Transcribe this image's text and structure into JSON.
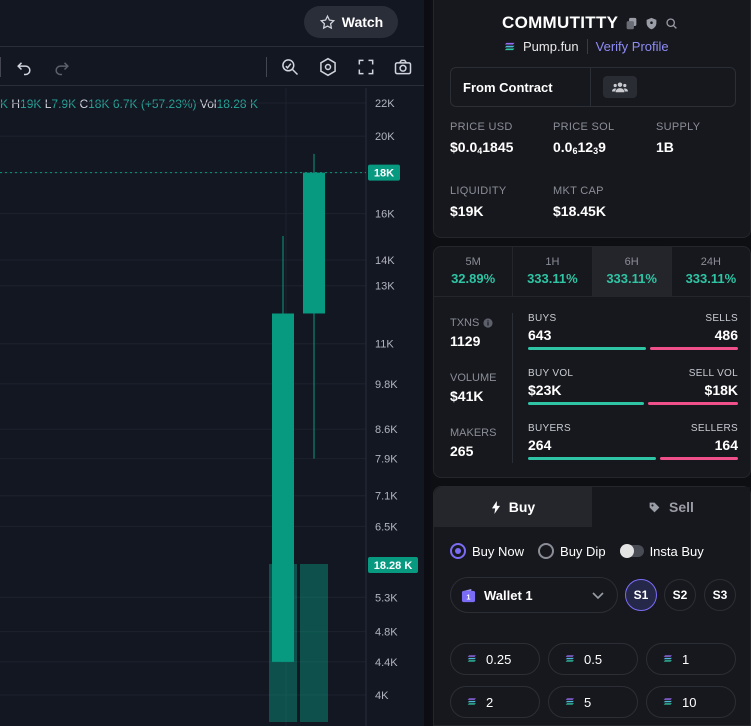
{
  "chart": {
    "watch_label": "Watch",
    "ohlc": {
      "o_value": "K",
      "h_label": "H",
      "h_value": "19K",
      "l_label": "L",
      "l_value": "7.9K",
      "c_label": "C",
      "c_value": "18K",
      "change": "6.7K (+57.23%)",
      "vol_label": "Vol",
      "vol_value": "18.28 K"
    },
    "price_ticks": [
      "22K",
      "20K",
      "18K",
      "16K",
      "14K",
      "13K",
      "11K",
      "9.8K",
      "8.6K",
      "7.9K",
      "7.1K",
      "6.5K",
      "5.3K",
      "4.8K",
      "4.4K",
      "4K"
    ],
    "last_price_label": "18K",
    "volume_label": "18.28 K",
    "candle_color": "#089981",
    "toolbar_icons": [
      "undo-icon",
      "redo-icon",
      "magnifier-icon",
      "indicators-icon",
      "fullscreen-icon",
      "camera-icon"
    ]
  },
  "chart_data": {
    "type": "candlestick",
    "candles": [
      {
        "open": 4.4,
        "high": 15,
        "low": 4.4,
        "close": 12
      },
      {
        "open": 12,
        "high": 19,
        "low": 7.9,
        "close": 18
      }
    ],
    "volume": [
      18.28,
      18.28
    ],
    "y_unit": "K"
  },
  "token": {
    "name": "COMMUTITTY",
    "platform": "Pump.fun",
    "verify_label": "Verify Profile",
    "from_contract": "From Contract",
    "price_usd_label": "PRICE USD",
    "price_usd_prefix": "$0.0",
    "price_usd_sub": "4",
    "price_usd_rest": "1845",
    "price_sol_label": "PRICE SOL",
    "price_sol_prefix": "0.0",
    "price_sol_sub1": "6",
    "price_sol_mid": "12",
    "price_sol_sub2": "3",
    "price_sol_rest": "9",
    "supply_label": "SUPPLY",
    "supply": "1B",
    "liquidity_label": "LIQUIDITY",
    "liquidity": "$19K",
    "mktcap_label": "MKT CAP",
    "mktcap": "$18.45K"
  },
  "timeframes": [
    {
      "label": "5M",
      "value": "32.89%"
    },
    {
      "label": "1H",
      "value": "333.11%"
    },
    {
      "label": "6H",
      "value": "333.11%"
    },
    {
      "label": "24H",
      "value": "333.11%"
    }
  ],
  "stats": {
    "txns_label": "TXNS",
    "txns": "1129",
    "volume_label": "VOLUME",
    "volume": "$41K",
    "makers_label": "MAKERS",
    "makers": "265",
    "buys_label": "BUYS",
    "buys": "643",
    "sells_label": "SELLS",
    "sells": "486",
    "buys_ratio": 0.57,
    "buyvol_label": "BUY VOL",
    "buyvol": "$23K",
    "sellvol_label": "SELL VOL",
    "sellvol": "$18K",
    "buyvol_ratio": 0.56,
    "buyers_label": "BUYERS",
    "buyers": "264",
    "sellers_label": "SELLERS",
    "sellers": "164",
    "buyers_ratio": 0.62
  },
  "trade": {
    "buy_tab": "Buy",
    "sell_tab": "Sell",
    "buy_now": "Buy Now",
    "buy_dip": "Buy Dip",
    "insta_buy": "Insta Buy",
    "wallet_label": "Wallet 1",
    "wallet_badge": "1",
    "slots": [
      "S1",
      "S2",
      "S3"
    ],
    "amounts": [
      "0.25",
      "0.5",
      "1",
      "2",
      "5",
      "10"
    ]
  },
  "colors": {
    "accent": "#7b6cf6",
    "buy": "#2ec4a4",
    "sell": "#f0508a"
  }
}
